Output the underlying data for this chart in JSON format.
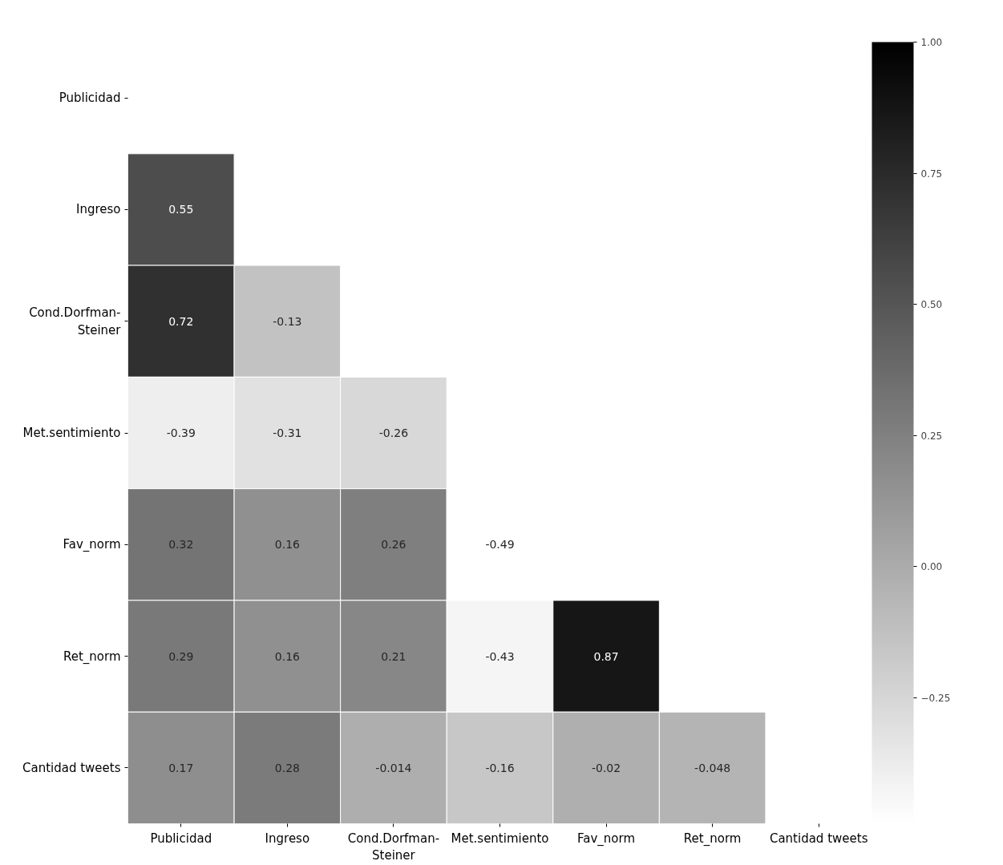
{
  "chart_data": {
    "type": "heatmap",
    "categories": [
      "Publicidad",
      "Ingreso",
      "Cond.Dorfman-Steiner",
      "Met.sentimiento",
      "Fav_norm",
      "Ret_norm",
      "Cantidad tweets"
    ],
    "y_categories": [
      "Publicidad",
      "Ingreso",
      "Cond.Dorfman-Steiner",
      "Met.sentimiento",
      "Fav_norm",
      "Ret_norm",
      "Cantidad tweets"
    ],
    "cells": [
      [
        null,
        null,
        null,
        null,
        null,
        null,
        null
      ],
      [
        0.55,
        null,
        null,
        null,
        null,
        null,
        null
      ],
      [
        0.72,
        -0.13,
        null,
        null,
        null,
        null,
        null
      ],
      [
        -0.39,
        -0.31,
        -0.26,
        null,
        null,
        null,
        null
      ],
      [
        0.32,
        0.16,
        0.26,
        -0.49,
        null,
        null,
        null
      ],
      [
        0.29,
        0.16,
        0.21,
        -0.43,
        0.87,
        null,
        null
      ],
      [
        0.17,
        0.28,
        -0.014,
        -0.16,
        -0.02,
        -0.048,
        null
      ]
    ],
    "data_labels": true,
    "clim": [
      -0.49,
      1.0
    ],
    "cticks": [
      {
        "value": -0.25,
        "label": "−0.25"
      },
      {
        "value": 0.0,
        "label": "0.00"
      },
      {
        "value": 0.25,
        "label": "0.25"
      },
      {
        "value": 0.5,
        "label": "0.50"
      },
      {
        "value": 0.75,
        "label": "0.75"
      },
      {
        "value": 1.0,
        "label": "1.00"
      }
    ]
  }
}
